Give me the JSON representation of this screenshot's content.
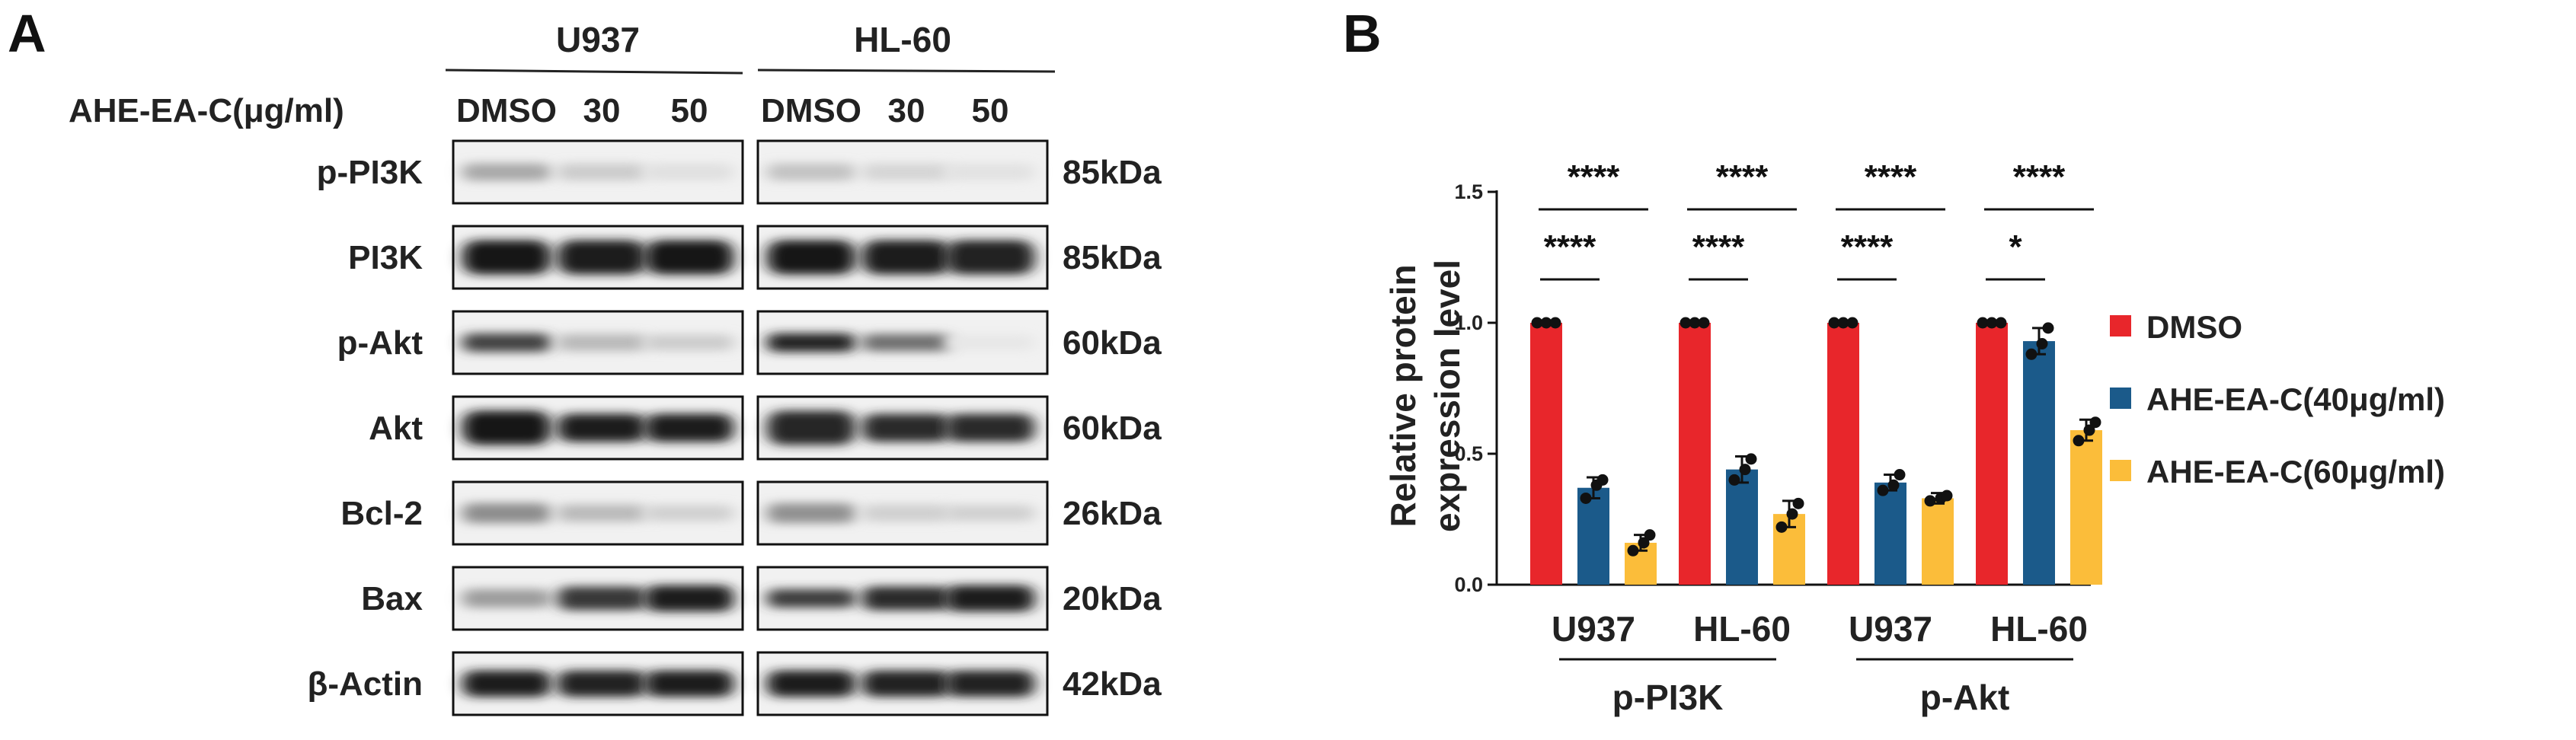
{
  "panel_a": {
    "letter": "A",
    "cell_lines": [
      "U937",
      "HL-60"
    ],
    "treatment_label": "AHE-EA-C(μg/ml)",
    "lanes": [
      "DMSO",
      "30",
      "50"
    ],
    "blots": [
      {
        "protein": "p-PI3K",
        "size": "85kDa",
        "u937": [
          0.3,
          0.14,
          0.05
        ],
        "hl60": [
          0.18,
          0.1,
          0.04
        ],
        "thick": [
          0.28,
          0.28,
          0.28
        ]
      },
      {
        "protein": "PI3K",
        "size": "85kDa",
        "u937": [
          0.95,
          0.92,
          0.95
        ],
        "hl60": [
          0.95,
          0.92,
          0.9
        ],
        "thick": [
          0.55,
          0.55,
          0.55
        ]
      },
      {
        "protein": "p-Akt",
        "size": "60kDa",
        "u937": [
          0.75,
          0.22,
          0.14
        ],
        "hl60": [
          0.9,
          0.55,
          0.02
        ],
        "thick": [
          0.3,
          0.28,
          0.26
        ]
      },
      {
        "protein": "Akt",
        "size": "60kDa",
        "u937": [
          0.95,
          0.92,
          0.92
        ],
        "hl60": [
          0.88,
          0.86,
          0.86
        ],
        "thick": [
          0.55,
          0.45,
          0.45
        ]
      },
      {
        "protein": "Bcl-2",
        "size": "26kDa",
        "u937": [
          0.42,
          0.22,
          0.12
        ],
        "hl60": [
          0.4,
          0.12,
          0.12
        ],
        "thick": [
          0.32,
          0.28,
          0.26
        ]
      },
      {
        "protein": "Bax",
        "size": "20kDa",
        "u937": [
          0.35,
          0.8,
          0.92
        ],
        "hl60": [
          0.78,
          0.85,
          0.92
        ],
        "thick": [
          0.3,
          0.38,
          0.42
        ]
      },
      {
        "protein": "β-Actin",
        "size": "42kDa",
        "u937": [
          0.92,
          0.9,
          0.92
        ],
        "hl60": [
          0.92,
          0.9,
          0.9
        ],
        "thick": [
          0.42,
          0.42,
          0.42
        ]
      }
    ]
  },
  "chart_data": {
    "type": "bar",
    "panel_letter": "B",
    "ylabel_lines": [
      "Relative protein",
      "expression level"
    ],
    "ylim": [
      0,
      1.5
    ],
    "yticks": [
      "0.0",
      "0.5",
      "1.0",
      "1.5"
    ],
    "ytick_values": [
      0,
      0.5,
      1.0,
      1.5
    ],
    "categories": [
      "U937",
      "HL-60",
      "U937",
      "HL-60"
    ],
    "category_groups": [
      {
        "label": "p-PI3K",
        "members": [
          0,
          1
        ]
      },
      {
        "label": "p-Akt",
        "members": [
          2,
          3
        ]
      }
    ],
    "series": [
      {
        "name": "DMSO",
        "color": "#e8262b",
        "values": [
          1.0,
          1.0,
          1.0,
          1.0
        ],
        "errors": [
          0,
          0,
          0,
          0
        ],
        "points": [
          [
            1.0,
            1.0,
            1.0
          ],
          [
            1.0,
            1.0,
            1.0
          ],
          [
            1.0,
            1.0,
            1.0
          ],
          [
            1.0,
            1.0,
            1.0
          ]
        ]
      },
      {
        "name": "AHE-EA-C(40μg/ml)",
        "color": "#1b5a8a",
        "values": [
          0.37,
          0.44,
          0.39,
          0.93
        ],
        "errors": [
          0.04,
          0.05,
          0.03,
          0.05
        ],
        "points": [
          [
            0.33,
            0.38,
            0.4
          ],
          [
            0.4,
            0.44,
            0.48
          ],
          [
            0.36,
            0.38,
            0.42
          ],
          [
            0.88,
            0.92,
            0.98
          ]
        ]
      },
      {
        "name": "AHE-EA-C(60μg/ml)",
        "color": "#fbbd3a",
        "values": [
          0.16,
          0.27,
          0.33,
          0.59
        ],
        "errors": [
          0.03,
          0.05,
          0.02,
          0.04
        ],
        "points": [
          [
            0.13,
            0.16,
            0.19
          ],
          [
            0.22,
            0.27,
            0.31
          ],
          [
            0.32,
            0.33,
            0.34
          ],
          [
            0.55,
            0.59,
            0.62
          ]
        ]
      }
    ],
    "significance": {
      "upper": [
        "****",
        "****",
        "****",
        "****"
      ],
      "lower": [
        "****",
        "****",
        "****",
        "*"
      ]
    },
    "legend_position": "right",
    "grid": false
  }
}
